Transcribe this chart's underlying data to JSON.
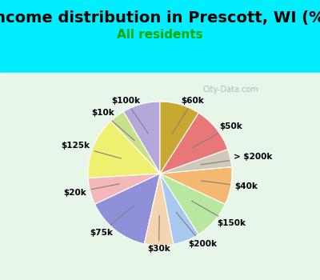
{
  "title": "Income distribution in Prescott, WI (%)",
  "subtitle": "All residents",
  "watermark": "City-Data.com",
  "background_top": "#00eeff",
  "background_chart": "#e8f5e9",
  "labels": [
    "$100k",
    "$10k",
    "$125k",
    "$20k",
    "$75k",
    "$30k",
    "$200k",
    "$150k",
    "$40k",
    "> $200k",
    "$50k",
    "$60k"
  ],
  "values": [
    8.5,
    3.5,
    14.0,
    6.0,
    14.5,
    6.5,
    6.0,
    9.0,
    8.5,
    4.0,
    10.5,
    9.0
  ],
  "colors": [
    "#b3a8d8",
    "#c8e08a",
    "#f0f070",
    "#f5b8b8",
    "#9090d8",
    "#f5d5b0",
    "#a8c8f0",
    "#b8e8a0",
    "#f5b870",
    "#d0c8b8",
    "#e87878",
    "#c8a830"
  ],
  "title_fontsize": 14,
  "subtitle_fontsize": 11,
  "subtitle_color": "#00aa00",
  "title_color": "#000000"
}
